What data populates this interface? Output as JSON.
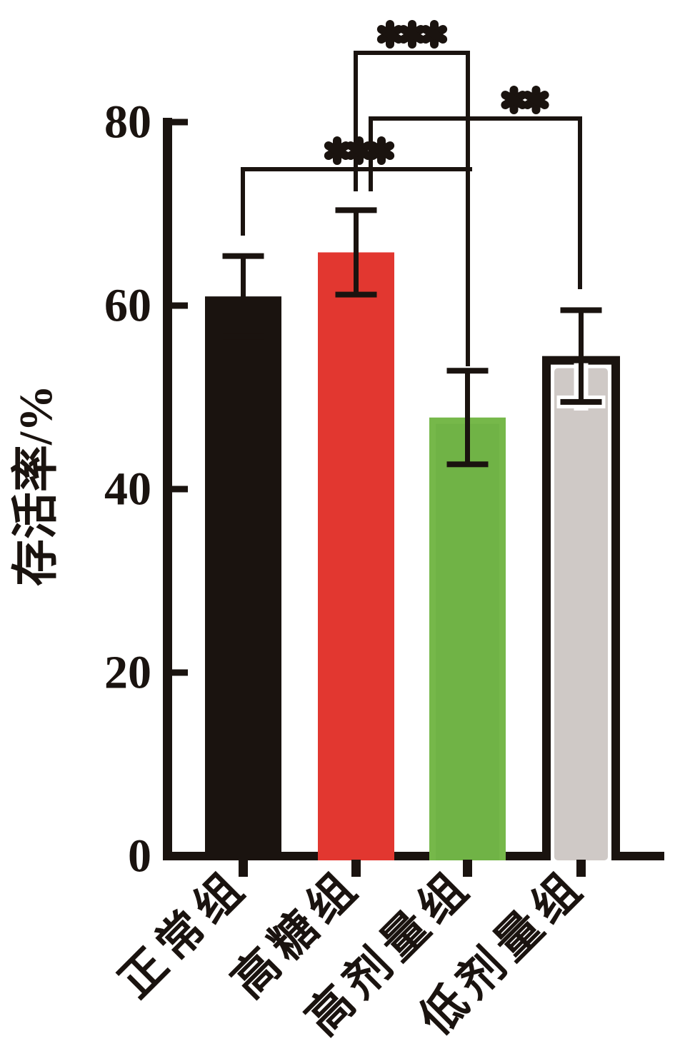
{
  "chart_data": {
    "type": "bar",
    "title": "",
    "xlabel": "",
    "ylabel": "存活率/%",
    "ylim": [
      0,
      80
    ],
    "yticks": [
      0,
      20,
      40,
      60,
      80
    ],
    "grid": false,
    "legend": null,
    "categories": [
      "正常组",
      "高糖组",
      "高剂量组",
      "低剂量组"
    ],
    "values": [
      61,
      65.8,
      47.8,
      54.5
    ],
    "errors": [
      4.4,
      4.6,
      5.1,
      5.0
    ],
    "bar_fill_colors": [
      "#1a130f",
      "#e23730",
      "#76b84a",
      "#cfc9c6"
    ],
    "bar_border_colors": [
      "#1a130f",
      "#e23730",
      "#6cae43",
      "#1a130f"
    ],
    "axis_color": "#1a130f",
    "error_bar_color": "#1a130f",
    "significance": [
      {
        "label": "***",
        "between": [
          "高糖组",
          "高剂量组"
        ]
      },
      {
        "label": "**",
        "between": [
          "高糖组",
          "低剂量组"
        ]
      },
      {
        "label": "***",
        "between": [
          "正常组",
          "高剂量组"
        ]
      }
    ]
  }
}
